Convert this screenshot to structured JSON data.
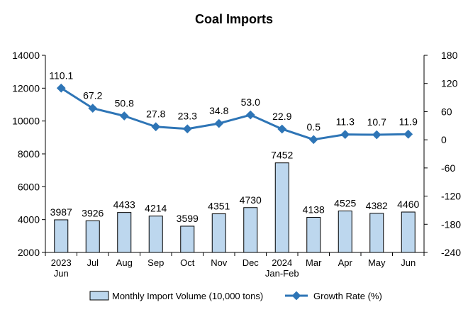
{
  "chart_data": {
    "type": "bar",
    "title": "Coal Imports",
    "categories": [
      [
        "2023",
        "Jun"
      ],
      [
        "Jul"
      ],
      [
        "Aug"
      ],
      [
        "Sep"
      ],
      [
        "Oct"
      ],
      [
        "Nov"
      ],
      [
        "Dec"
      ],
      [
        "2024",
        "Jan-Feb"
      ],
      [
        "Mar"
      ],
      [
        "Apr"
      ],
      [
        "May"
      ],
      [
        "Jun"
      ]
    ],
    "series": [
      {
        "name": "Monthly Import Volume (10,000 tons)",
        "type": "bar",
        "axis": "left",
        "values": [
          3987,
          3926,
          4433,
          4214,
          3599,
          4351,
          4730,
          7452,
          4138,
          4525,
          4382,
          4460
        ],
        "labels": [
          "3987",
          "3926",
          "4433",
          "4214",
          "3599",
          "4351",
          "4730",
          "7452",
          "4138",
          "4525",
          "4382",
          "4460"
        ]
      },
      {
        "name": "Growth Rate (%)",
        "type": "line",
        "axis": "right",
        "values": [
          110.1,
          67.2,
          50.8,
          27.8,
          23.3,
          34.8,
          53.0,
          22.9,
          0.5,
          11.3,
          10.7,
          11.9
        ],
        "labels": [
          "110.1",
          "67.2",
          "50.8",
          "27.8",
          "23.3",
          "34.8",
          "53.0",
          "22.9",
          "0.5",
          "11.3",
          "10.7",
          "11.9"
        ]
      }
    ],
    "y_left": {
      "min": 2000,
      "max": 14000,
      "ticks": [
        "14000",
        "12000",
        "10000",
        "8000",
        "6000",
        "4000",
        "2000"
      ]
    },
    "y_right": {
      "min": -240,
      "max": 180,
      "ticks": [
        "180",
        "120",
        "60",
        "0",
        "-60",
        "-120",
        "-180",
        "-240"
      ]
    },
    "grid": false,
    "legend_position": "bottom",
    "colors": {
      "bar_fill": "#bdd7ee",
      "bar_stroke": "#000000",
      "line": "#2e75b6"
    }
  }
}
